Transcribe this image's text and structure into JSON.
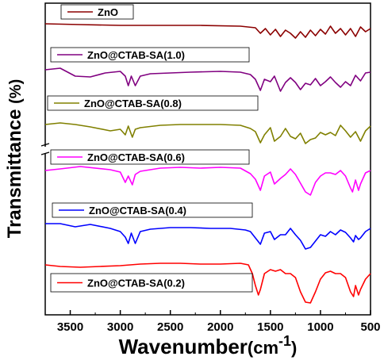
{
  "chart_data": {
    "type": "line",
    "xlabel": "Wavenumber",
    "xlabel_unit": "(cm-1)",
    "xlabel_unit_base": "(cm",
    "xlabel_unit_sup": "-1",
    "xlabel_unit_close": ")",
    "ylabel": "Transmittance %",
    "ylabel_main": "Transmittance ",
    "ylabel_unit": "(%)",
    "xlim": [
      3750,
      500
    ],
    "x_reversed": true,
    "x_ticks": [
      3500,
      3000,
      2500,
      2000,
      1500,
      1000,
      500
    ],
    "x_tick_labels": [
      "3500",
      "3000",
      "2500",
      "2000",
      "1500",
      "1000",
      "500"
    ],
    "y_ticks_shown": false,
    "axis_break_on_y": true,
    "grid": false,
    "legend_placement": "per-series labels above each trace",
    "series": [
      {
        "name": "ZnO",
        "color": "#8b0000",
        "points": [
          [
            3750,
            30
          ],
          [
            3400,
            31
          ],
          [
            3000,
            32
          ],
          [
            2600,
            32
          ],
          [
            2200,
            32
          ],
          [
            1800,
            33
          ],
          [
            1650,
            35
          ],
          [
            1600,
            42
          ],
          [
            1550,
            36
          ],
          [
            1500,
            44
          ],
          [
            1450,
            37
          ],
          [
            1400,
            46
          ],
          [
            1350,
            38
          ],
          [
            1300,
            42
          ],
          [
            1250,
            48
          ],
          [
            1200,
            40
          ],
          [
            1150,
            47
          ],
          [
            1100,
            38
          ],
          [
            1050,
            45
          ],
          [
            1000,
            37
          ],
          [
            950,
            43
          ],
          [
            900,
            33
          ],
          [
            850,
            42
          ],
          [
            800,
            36
          ],
          [
            750,
            44
          ],
          [
            700,
            36
          ],
          [
            650,
            46
          ],
          [
            600,
            34
          ],
          [
            550,
            40
          ],
          [
            500,
            36
          ]
        ]
      },
      {
        "name": "ZnO@CTAB-SA(1.0)",
        "color": "#800080",
        "points": [
          [
            3750,
            88
          ],
          [
            3600,
            86
          ],
          [
            3450,
            96
          ],
          [
            3300,
            97
          ],
          [
            3150,
            92
          ],
          [
            3000,
            90
          ],
          [
            2950,
            96
          ],
          [
            2920,
            108
          ],
          [
            2890,
            96
          ],
          [
            2850,
            108
          ],
          [
            2800,
            96
          ],
          [
            2700,
            93
          ],
          [
            2500,
            92
          ],
          [
            2300,
            91
          ],
          [
            2000,
            90
          ],
          [
            1800,
            91
          ],
          [
            1700,
            94
          ],
          [
            1650,
            100
          ],
          [
            1600,
            114
          ],
          [
            1560,
            100
          ],
          [
            1500,
            103
          ],
          [
            1460,
            96
          ],
          [
            1400,
            115
          ],
          [
            1350,
            104
          ],
          [
            1300,
            98
          ],
          [
            1250,
            104
          ],
          [
            1200,
            113
          ],
          [
            1150,
            105
          ],
          [
            1100,
            107
          ],
          [
            1050,
            99
          ],
          [
            1000,
            108
          ],
          [
            950,
            103
          ],
          [
            900,
            97
          ],
          [
            850,
            104
          ],
          [
            800,
            110
          ],
          [
            750,
            103
          ],
          [
            700,
            108
          ],
          [
            650,
            95
          ],
          [
            600,
            102
          ],
          [
            550,
            92
          ],
          [
            500,
            91
          ]
        ]
      },
      {
        "name": "ZnO@CTAB-SA(0.8)",
        "color": "#808000",
        "points": [
          [
            3750,
            157
          ],
          [
            3600,
            155
          ],
          [
            3450,
            157
          ],
          [
            3300,
            160
          ],
          [
            3100,
            165
          ],
          [
            3000,
            163
          ],
          [
            2950,
            170
          ],
          [
            2920,
            159
          ],
          [
            2880,
            173
          ],
          [
            2850,
            163
          ],
          [
            2800,
            161
          ],
          [
            2600,
            158
          ],
          [
            2400,
            157
          ],
          [
            2200,
            157
          ],
          [
            2000,
            157
          ],
          [
            1800,
            158
          ],
          [
            1700,
            162
          ],
          [
            1650,
            166
          ],
          [
            1600,
            180
          ],
          [
            1560,
            170
          ],
          [
            1500,
            161
          ],
          [
            1460,
            178
          ],
          [
            1400,
            172
          ],
          [
            1350,
            162
          ],
          [
            1300,
            172
          ],
          [
            1250,
            175
          ],
          [
            1200,
            168
          ],
          [
            1150,
            181
          ],
          [
            1100,
            176
          ],
          [
            1050,
            174
          ],
          [
            1000,
            167
          ],
          [
            950,
            170
          ],
          [
            900,
            167
          ],
          [
            850,
            171
          ],
          [
            800,
            158
          ],
          [
            750,
            165
          ],
          [
            700,
            173
          ],
          [
            650,
            166
          ],
          [
            600,
            178
          ],
          [
            550,
            165
          ],
          [
            500,
            159
          ]
        ]
      },
      {
        "name": "ZnO@CTAB-SA(0.6)",
        "color": "#ff00ff",
        "points": [
          [
            3750,
            215
          ],
          [
            3600,
            213
          ],
          [
            3400,
            210
          ],
          [
            3100,
            214
          ],
          [
            3000,
            217
          ],
          [
            2950,
            230
          ],
          [
            2920,
            222
          ],
          [
            2880,
            233
          ],
          [
            2850,
            220
          ],
          [
            2800,
            216
          ],
          [
            2600,
            212
          ],
          [
            2400,
            211
          ],
          [
            2200,
            212
          ],
          [
            2000,
            211
          ],
          [
            1800,
            212
          ],
          [
            1700,
            219
          ],
          [
            1650,
            226
          ],
          [
            1600,
            240
          ],
          [
            1560,
            222
          ],
          [
            1500,
            217
          ],
          [
            1460,
            232
          ],
          [
            1400,
            225
          ],
          [
            1350,
            220
          ],
          [
            1300,
            213
          ],
          [
            1250,
            220
          ],
          [
            1200,
            231
          ],
          [
            1150,
            242
          ],
          [
            1100,
            246
          ],
          [
            1050,
            230
          ],
          [
            1000,
            222
          ],
          [
            950,
            218
          ],
          [
            900,
            218
          ],
          [
            850,
            220
          ],
          [
            800,
            215
          ],
          [
            750,
            222
          ],
          [
            700,
            237
          ],
          [
            680,
            242
          ],
          [
            650,
            227
          ],
          [
            620,
            240
          ],
          [
            600,
            232
          ],
          [
            550,
            218
          ],
          [
            500,
            215
          ]
        ]
      },
      {
        "name": "ZnO@CTAB-SA(0.4)",
        "color": "#0000ff",
        "points": [
          [
            3750,
            282
          ],
          [
            3600,
            282
          ],
          [
            3450,
            286
          ],
          [
            3300,
            283
          ],
          [
            3100,
            288
          ],
          [
            3000,
            292
          ],
          [
            2950,
            299
          ],
          [
            2920,
            307
          ],
          [
            2890,
            294
          ],
          [
            2850,
            307
          ],
          [
            2800,
            292
          ],
          [
            2700,
            289
          ],
          [
            2500,
            287
          ],
          [
            2300,
            287
          ],
          [
            2100,
            288
          ],
          [
            1900,
            288
          ],
          [
            1750,
            290
          ],
          [
            1700,
            292
          ],
          [
            1650,
            300
          ],
          [
            1600,
            308
          ],
          [
            1560,
            294
          ],
          [
            1500,
            292
          ],
          [
            1460,
            302
          ],
          [
            1400,
            296
          ],
          [
            1350,
            296
          ],
          [
            1300,
            288
          ],
          [
            1250,
            296
          ],
          [
            1200,
            303
          ],
          [
            1150,
            314
          ],
          [
            1100,
            312
          ],
          [
            1050,
            304
          ],
          [
            1000,
            296
          ],
          [
            950,
            298
          ],
          [
            900,
            292
          ],
          [
            850,
            296
          ],
          [
            800,
            290
          ],
          [
            750,
            293
          ],
          [
            700,
            300
          ],
          [
            670,
            305
          ],
          [
            650,
            297
          ],
          [
            620,
            302
          ],
          [
            600,
            300
          ],
          [
            550,
            292
          ],
          [
            500,
            288
          ]
        ]
      },
      {
        "name": "ZnO@CTAB-SA(0.2)",
        "color": "#ff0000",
        "points": [
          [
            3750,
            334
          ],
          [
            3600,
            336
          ],
          [
            3400,
            337
          ],
          [
            3200,
            336
          ],
          [
            3000,
            335
          ],
          [
            2800,
            333
          ],
          [
            2600,
            332
          ],
          [
            2400,
            332
          ],
          [
            2200,
            333
          ],
          [
            2000,
            333
          ],
          [
            1800,
            332
          ],
          [
            1720,
            334
          ],
          [
            1680,
            345
          ],
          [
            1650,
            360
          ],
          [
            1620,
            372
          ],
          [
            1600,
            365
          ],
          [
            1560,
            345
          ],
          [
            1500,
            340
          ],
          [
            1450,
            342
          ],
          [
            1400,
            340
          ],
          [
            1350,
            345
          ],
          [
            1300,
            345
          ],
          [
            1250,
            350
          ],
          [
            1200,
            368
          ],
          [
            1150,
            381
          ],
          [
            1100,
            382
          ],
          [
            1050,
            368
          ],
          [
            1000,
            352
          ],
          [
            950,
            344
          ],
          [
            900,
            342
          ],
          [
            850,
            345
          ],
          [
            800,
            345
          ],
          [
            750,
            350
          ],
          [
            700,
            368
          ],
          [
            670,
            374
          ],
          [
            650,
            360
          ],
          [
            620,
            372
          ],
          [
            600,
            365
          ],
          [
            550,
            352
          ],
          [
            500,
            345
          ]
        ]
      }
    ]
  }
}
